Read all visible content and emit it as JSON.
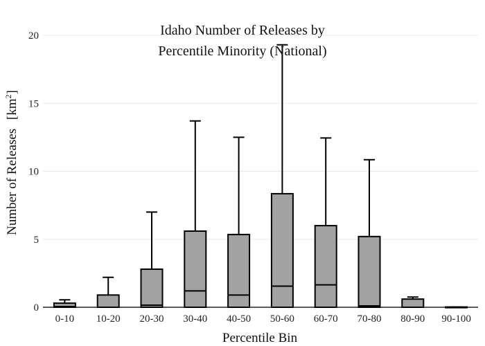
{
  "chart_data": {
    "type": "box",
    "title_lines": [
      "Idaho Number of Releases by",
      "Percentile Minority (National)"
    ],
    "xlabel": "Percentile Bin",
    "ylabel": "Number of Releases",
    "ylabel_unit": "km",
    "ylabel_unit_sup": "2",
    "ylim": [
      0,
      20
    ],
    "yticks": [
      0,
      5,
      10,
      15,
      20
    ],
    "grid": true,
    "categories": [
      "0-10",
      "10-20",
      "20-30",
      "30-40",
      "40-50",
      "50-60",
      "60-70",
      "70-80",
      "80-90",
      "90-100"
    ],
    "boxes": [
      {
        "q1": 0,
        "median": 0.05,
        "q3": 0.3,
        "whisker_low": 0,
        "whisker_high": 0.55
      },
      {
        "q1": 0,
        "median": 0,
        "q3": 0.9,
        "whisker_low": 0,
        "whisker_high": 2.2
      },
      {
        "q1": 0,
        "median": 0.15,
        "q3": 2.8,
        "whisker_low": 0,
        "whisker_high": 7.0
      },
      {
        "q1": 0,
        "median": 1.2,
        "q3": 5.6,
        "whisker_low": 0,
        "whisker_high": 13.7
      },
      {
        "q1": 0,
        "median": 0.9,
        "q3": 5.35,
        "whisker_low": 0,
        "whisker_high": 12.5
      },
      {
        "q1": 0,
        "median": 1.55,
        "q3": 8.35,
        "whisker_low": 0,
        "whisker_high": 19.3
      },
      {
        "q1": 0,
        "median": 1.65,
        "q3": 6.0,
        "whisker_low": 0,
        "whisker_high": 12.45
      },
      {
        "q1": 0,
        "median": 0.1,
        "q3": 5.2,
        "whisker_low": 0,
        "whisker_high": 10.85
      },
      {
        "q1": 0,
        "median": 0,
        "q3": 0.6,
        "whisker_low": 0,
        "whisker_high": 0.75
      },
      {
        "q1": 0,
        "median": 0,
        "q3": 0.02,
        "whisker_low": 0,
        "whisker_high": 0.02
      }
    ]
  }
}
